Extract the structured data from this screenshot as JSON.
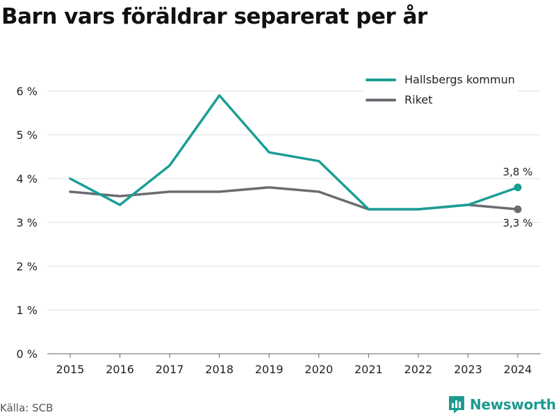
{
  "title": "Barn vars föräldrar separerat per år",
  "footer": {
    "source": "Källa: SCB",
    "brand": "Newsworthy"
  },
  "colors": {
    "hallsberg": "#1a9e95",
    "riket": "#6b6b72",
    "grid": "#dcdcdc"
  },
  "chart_data": {
    "type": "line",
    "title": "Barn vars föräldrar separerat per år",
    "xlabel": "",
    "ylabel": "",
    "categories": [
      "2015",
      "2016",
      "2017",
      "2018",
      "2019",
      "2020",
      "2021",
      "2022",
      "2023",
      "2024"
    ],
    "series": [
      {
        "name": "Hallsbergs kommun",
        "values": [
          4.0,
          3.4,
          4.3,
          5.9,
          4.6,
          4.4,
          3.3,
          3.3,
          3.4,
          3.8
        ],
        "end_label": "3,8 %"
      },
      {
        "name": "Riket",
        "values": [
          3.7,
          3.6,
          3.7,
          3.7,
          3.8,
          3.7,
          3.3,
          3.3,
          3.4,
          3.3
        ],
        "end_label": "3,3 %"
      }
    ],
    "ylim": [
      0,
      6
    ],
    "yticks": [
      0,
      1,
      2,
      3,
      4,
      5,
      6
    ],
    "ytick_labels": [
      "0 %",
      "1 %",
      "2 %",
      "3 %",
      "4 %",
      "5 %",
      "6 %"
    ],
    "grid": true,
    "legend_position": "top-right"
  }
}
